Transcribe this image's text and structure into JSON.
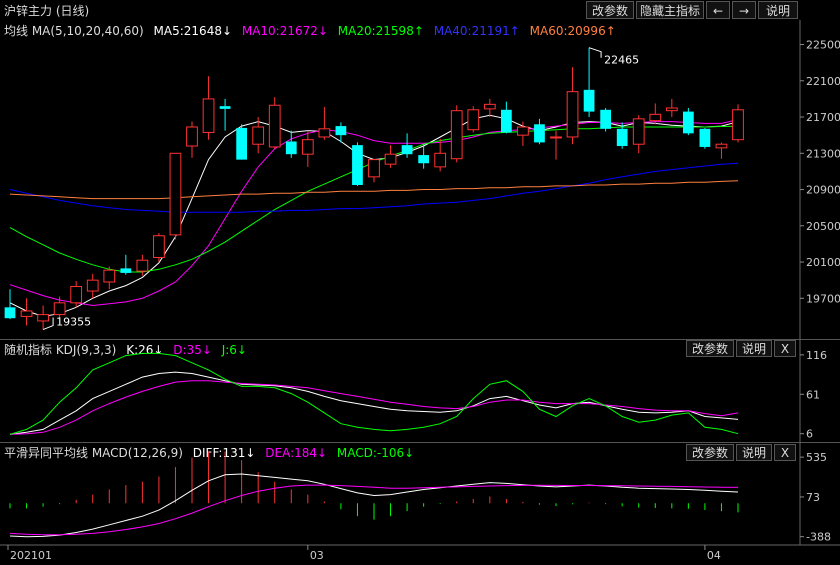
{
  "title": "沪锌主力 (日线)",
  "toolbar": {
    "params": "改参数",
    "hide_main": "隐藏主指标",
    "prev": "←",
    "next": "→",
    "help": "说明"
  },
  "main_legend": {
    "name": "均线 MA(5,10,20,40,60)",
    "ma5": "MA5:21648↓",
    "ma10": "MA10:21672↓",
    "ma20": "MA20:21598↑",
    "ma40": "MA40:21191↑",
    "ma60": "MA60:20996↑"
  },
  "kdj_legend": {
    "name": "随机指标 KDJ(9,3,3)",
    "k": "K:26↓",
    "d": "D:35↓",
    "j": "J:6↓"
  },
  "macd_legend": {
    "name": "平滑异同平均线 MACD(12,26,9)",
    "diff": "DIFF:131↓",
    "dea": "DEA:184↓",
    "macd": "MACD:-106↓"
  },
  "panel_buttons": {
    "params": "改参数",
    "help": "说明",
    "close": "X"
  },
  "colors": {
    "up": "#ff3232",
    "down": "#00ffff",
    "ma5": "#ffffff",
    "ma10": "#ff00ff",
    "ma20": "#00ff00",
    "ma40": "#0000ff",
    "ma60": "#ff8040"
  },
  "chart_data": [
    {
      "type": "candlestick",
      "title": "沪锌主力 (日线)",
      "ylim": [
        19350,
        22550
      ],
      "y_ticks": [
        "22500",
        "22100",
        "21700",
        "21300",
        "20900",
        "20500",
        "20100",
        "19700"
      ],
      "annotations": {
        "high": "22465",
        "low": "19355"
      },
      "x_ticks": [
        "202101",
        "03",
        "04"
      ],
      "candles": [
        {
          "o": 19600,
          "h": 19800,
          "l": 19470,
          "c": 19480
        },
        {
          "o": 19500,
          "h": 19700,
          "l": 19400,
          "c": 19560
        },
        {
          "o": 19450,
          "h": 19620,
          "l": 19355,
          "c": 19520
        },
        {
          "o": 19520,
          "h": 19720,
          "l": 19480,
          "c": 19650
        },
        {
          "o": 19650,
          "h": 19890,
          "l": 19600,
          "c": 19830
        },
        {
          "o": 19780,
          "h": 19970,
          "l": 19700,
          "c": 19900
        },
        {
          "o": 19880,
          "h": 20050,
          "l": 19800,
          "c": 20010
        },
        {
          "o": 20030,
          "h": 20180,
          "l": 19960,
          "c": 19980
        },
        {
          "o": 20000,
          "h": 20180,
          "l": 19950,
          "c": 20120
        },
        {
          "o": 20150,
          "h": 20420,
          "l": 20100,
          "c": 20390
        },
        {
          "o": 20400,
          "h": 21300,
          "l": 20350,
          "c": 21300
        },
        {
          "o": 21380,
          "h": 21650,
          "l": 21250,
          "c": 21590
        },
        {
          "o": 21530,
          "h": 22150,
          "l": 21450,
          "c": 21900
        },
        {
          "o": 21820,
          "h": 21900,
          "l": 21550,
          "c": 21790
        },
        {
          "o": 21580,
          "h": 21620,
          "l": 21230,
          "c": 21230
        },
        {
          "o": 21400,
          "h": 21700,
          "l": 21300,
          "c": 21590
        },
        {
          "o": 21370,
          "h": 21920,
          "l": 21350,
          "c": 21830
        },
        {
          "o": 21430,
          "h": 21550,
          "l": 21250,
          "c": 21290
        },
        {
          "o": 21290,
          "h": 21550,
          "l": 21150,
          "c": 21450
        },
        {
          "o": 21480,
          "h": 21810,
          "l": 21450,
          "c": 21570
        },
        {
          "o": 21600,
          "h": 21640,
          "l": 21420,
          "c": 21500
        },
        {
          "o": 21390,
          "h": 21420,
          "l": 20940,
          "c": 20950
        },
        {
          "o": 21040,
          "h": 21240,
          "l": 20980,
          "c": 21230
        },
        {
          "o": 21180,
          "h": 21390,
          "l": 21140,
          "c": 21290
        },
        {
          "o": 21390,
          "h": 21520,
          "l": 21250,
          "c": 21290
        },
        {
          "o": 21280,
          "h": 21400,
          "l": 21130,
          "c": 21190
        },
        {
          "o": 21150,
          "h": 21460,
          "l": 21100,
          "c": 21300
        },
        {
          "o": 21240,
          "h": 21830,
          "l": 21200,
          "c": 21770
        },
        {
          "o": 21560,
          "h": 21820,
          "l": 21530,
          "c": 21780
        },
        {
          "o": 21790,
          "h": 21900,
          "l": 21700,
          "c": 21840
        },
        {
          "o": 21780,
          "h": 21870,
          "l": 21520,
          "c": 21530
        },
        {
          "o": 21500,
          "h": 21650,
          "l": 21380,
          "c": 21590
        },
        {
          "o": 21620,
          "h": 21680,
          "l": 21400,
          "c": 21420
        },
        {
          "o": 21480,
          "h": 21550,
          "l": 21230,
          "c": 21480
        },
        {
          "o": 21480,
          "h": 22250,
          "l": 21400,
          "c": 21980
        },
        {
          "o": 22000,
          "h": 22465,
          "l": 21700,
          "c": 21760
        },
        {
          "o": 21780,
          "h": 21800,
          "l": 21540,
          "c": 21570
        },
        {
          "o": 21570,
          "h": 21640,
          "l": 21350,
          "c": 21380
        },
        {
          "o": 21400,
          "h": 21720,
          "l": 21300,
          "c": 21680
        },
        {
          "o": 21660,
          "h": 21850,
          "l": 21620,
          "c": 21730
        },
        {
          "o": 21770,
          "h": 21900,
          "l": 21700,
          "c": 21800
        },
        {
          "o": 21760,
          "h": 21800,
          "l": 21500,
          "c": 21520
        },
        {
          "o": 21570,
          "h": 21580,
          "l": 21350,
          "c": 21370
        },
        {
          "o": 21360,
          "h": 21420,
          "l": 21240,
          "c": 21400
        },
        {
          "o": 21450,
          "h": 21840,
          "l": 21420,
          "c": 21780
        }
      ],
      "ma": {
        "ma5": [
          19650,
          19560,
          19500,
          19530,
          19600,
          19700,
          19780,
          19840,
          19930,
          20090,
          20380,
          20800,
          21230,
          21480,
          21600,
          21650,
          21600,
          21530,
          21550,
          21540,
          21430,
          21300,
          21230,
          21250,
          21310,
          21380,
          21480,
          21580,
          21680,
          21720,
          21680,
          21600,
          21550,
          21590,
          21640,
          21650,
          21640,
          21600,
          21640,
          21630,
          21610,
          21600,
          21590,
          21600,
          21648
        ],
        "ma10": [
          19850,
          19790,
          19730,
          19680,
          19650,
          19620,
          19640,
          19660,
          19700,
          19780,
          19880,
          20060,
          20280,
          20580,
          20880,
          21150,
          21350,
          21460,
          21520,
          21560,
          21540,
          21500,
          21440,
          21410,
          21410,
          21410,
          21420,
          21440,
          21480,
          21530,
          21550,
          21560,
          21580,
          21600,
          21620,
          21640,
          21640,
          21630,
          21640,
          21650,
          21650,
          21640,
          21630,
          21630,
          21672
        ],
        "ma20": [
          20480,
          20380,
          20290,
          20200,
          20130,
          20070,
          20020,
          19990,
          19990,
          20020,
          20070,
          20130,
          20220,
          20320,
          20440,
          20560,
          20680,
          20780,
          20880,
          20960,
          21040,
          21120,
          21200,
          21270,
          21330,
          21400,
          21440,
          21470,
          21500,
          21520,
          21530,
          21540,
          21550,
          21560,
          21570,
          21570,
          21580,
          21590,
          21590,
          21590,
          21590,
          21590,
          21590,
          21595,
          21598
        ],
        "ma40": [
          20900,
          20860,
          20820,
          20780,
          20750,
          20720,
          20700,
          20680,
          20670,
          20660,
          20650,
          20650,
          20650,
          20650,
          20650,
          20660,
          20660,
          20670,
          20670,
          20680,
          20690,
          20690,
          20700,
          20710,
          20720,
          20740,
          20750,
          20760,
          20780,
          20800,
          20830,
          20860,
          20880,
          20910,
          20940,
          20970,
          21010,
          21040,
          21070,
          21100,
          21120,
          21140,
          21160,
          21180,
          21191
        ],
        "ma60": [
          20850,
          20840,
          20830,
          20820,
          20810,
          20800,
          20800,
          20800,
          20800,
          20800,
          20810,
          20820,
          20830,
          20840,
          20850,
          20850,
          20860,
          20860,
          20870,
          20870,
          20880,
          20880,
          20880,
          20890,
          20890,
          20900,
          20900,
          20910,
          20910,
          20920,
          20920,
          20930,
          20930,
          20940,
          20940,
          20950,
          20950,
          20960,
          20960,
          20970,
          20970,
          20980,
          20980,
          20990,
          20996
        ]
      }
    },
    {
      "type": "line",
      "title": "随机指标 KDJ(9,3,3)",
      "ylim": [
        0,
        120
      ],
      "y_ticks": [
        "116",
        "61",
        "6"
      ],
      "series": [
        {
          "name": "K",
          "values": [
            5,
            8,
            12,
            25,
            38,
            55,
            65,
            75,
            85,
            90,
            92,
            90,
            85,
            80,
            75,
            74,
            73,
            70,
            65,
            58,
            52,
            48,
            44,
            40,
            38,
            37,
            36,
            38,
            45,
            55,
            58,
            52,
            46,
            42,
            48,
            50,
            45,
            40,
            36,
            35,
            36,
            38,
            30,
            28,
            26
          ]
        },
        {
          "name": "D",
          "values": [
            5,
            6,
            8,
            15,
            25,
            38,
            48,
            57,
            65,
            72,
            78,
            80,
            80,
            78,
            76,
            75,
            74,
            72,
            70,
            66,
            62,
            58,
            54,
            50,
            47,
            44,
            42,
            41,
            44,
            50,
            53,
            53,
            50,
            48,
            48,
            48,
            46,
            44,
            41,
            39,
            38,
            38,
            34,
            31,
            35
          ]
        },
        {
          "name": "J",
          "values": [
            5,
            12,
            25,
            50,
            70,
            95,
            105,
            115,
            118,
            118,
            115,
            105,
            95,
            82,
            72,
            72,
            70,
            62,
            50,
            35,
            20,
            15,
            12,
            10,
            12,
            15,
            20,
            30,
            55,
            75,
            80,
            65,
            40,
            30,
            45,
            55,
            45,
            30,
            22,
            25,
            32,
            35,
            15,
            12,
            6
          ]
        }
      ]
    },
    {
      "type": "bar",
      "title": "平滑异同平均线 MACD(12,26,9)",
      "ylim": [
        -450,
        560
      ],
      "y_ticks": [
        "535",
        "73",
        "-388"
      ],
      "series": [
        {
          "name": "DIFF",
          "values": [
            -380,
            -390,
            -385,
            -370,
            -340,
            -300,
            -250,
            -200,
            -150,
            -80,
            30,
            150,
            260,
            330,
            340,
            320,
            300,
            280,
            260,
            220,
            170,
            120,
            90,
            100,
            130,
            160,
            180,
            200,
            220,
            240,
            230,
            215,
            200,
            190,
            200,
            210,
            200,
            185,
            175,
            170,
            165,
            160,
            150,
            140,
            131
          ]
        },
        {
          "name": "DEA",
          "values": [
            -350,
            -360,
            -365,
            -365,
            -360,
            -350,
            -330,
            -305,
            -275,
            -235,
            -180,
            -115,
            -40,
            30,
            90,
            140,
            175,
            200,
            210,
            210,
            205,
            195,
            185,
            175,
            175,
            180,
            185,
            190,
            195,
            200,
            205,
            207,
            208,
            207,
            206,
            206,
            205,
            203,
            200,
            197,
            195,
            192,
            189,
            186,
            184
          ]
        },
        {
          "name": "MACD",
          "values": [
            -60,
            -60,
            -40,
            -10,
            40,
            100,
            160,
            210,
            250,
            310,
            420,
            530,
            600,
            600,
            500,
            360,
            250,
            160,
            100,
            20,
            -70,
            -150,
            -190,
            -150,
            -90,
            -40,
            -10,
            20,
            50,
            80,
            50,
            16,
            -16,
            -34,
            -12,
            8,
            -10,
            -36,
            -50,
            -54,
            -60,
            -64,
            -78,
            -92,
            -106
          ]
        }
      ]
    }
  ]
}
